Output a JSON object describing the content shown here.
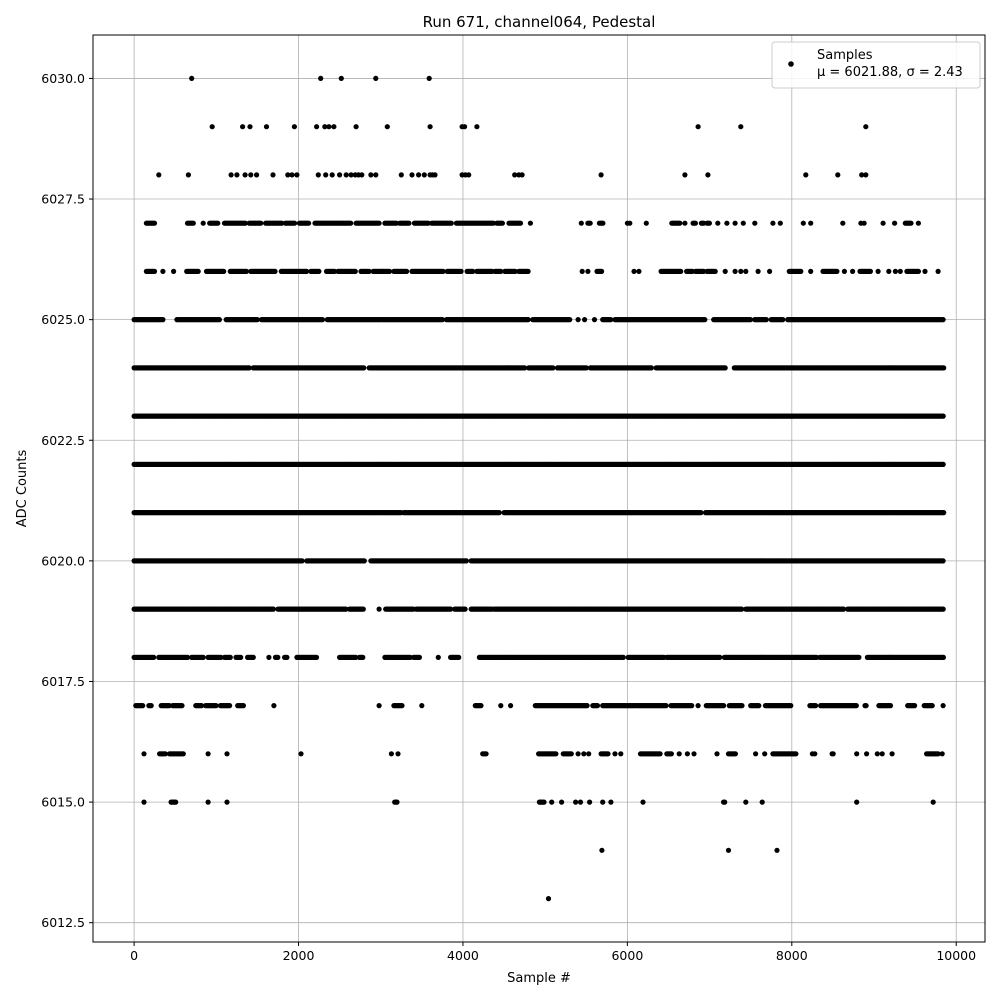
{
  "chart_data": {
    "type": "scatter",
    "title": "Run 671, channel064, Pedestal",
    "xlabel": "Sample #",
    "ylabel": "ADC Counts",
    "xlim": [
      -500,
      10350
    ],
    "ylim": [
      6012.1,
      6030.9
    ],
    "x_ticks": [
      "0",
      "2000",
      "4000",
      "6000",
      "8000",
      "10000"
    ],
    "y_ticks": [
      "6012.5",
      "6015.0",
      "6017.5",
      "6020.0",
      "6022.5",
      "6025.0",
      "6027.5",
      "6030.0"
    ],
    "x_tick_values": [
      0,
      2000,
      4000,
      6000,
      8000,
      10000
    ],
    "y_tick_values": [
      6012.5,
      6015.0,
      6017.5,
      6020.0,
      6022.5,
      6025.0,
      6027.5,
      6030.0
    ],
    "grid": true,
    "legend": {
      "placement": "top-right",
      "entries": [
        {
          "label": "Samples",
          "stat": "μ = 6021.88, σ = 2.43",
          "color": "#000000",
          "marker": "circle"
        }
      ]
    },
    "series": [
      {
        "name": "Samples",
        "color": "#000000",
        "mean": 6021.88,
        "sigma": 2.43,
        "n_samples": 9850,
        "levels": [
          {
            "y": 6030,
            "x": [
              700,
              2270,
              2520,
              2940,
              3590
            ]
          },
          {
            "y": 6029,
            "x": [
              950,
              1320,
              1410,
              1610,
              1950,
              2220,
              2320,
              2370,
              2430,
              2700,
              3080,
              3600,
              3990,
              4020,
              4170,
              6860,
              7380,
              8900
            ]
          },
          {
            "y": 6028,
            "x": [
              300,
              660,
              1180,
              1250,
              1350,
              1420,
              1490,
              1690,
              1870,
              1920,
              1980,
              2240,
              2330,
              2410,
              2500,
              2580,
              2640,
              2690,
              2730,
              2770,
              2880,
              2940,
              3250,
              3380,
              3460,
              3530,
              3600,
              3630,
              3660,
              3990,
              4030,
              4070,
              4630,
              4680,
              4720,
              5680,
              6700,
              6980,
              8170,
              8560,
              8850,
              8900
            ]
          },
          {
            "y": 6027,
            "x": [
              [
                150,
                250
              ],
              [
                650,
                720
              ],
              840,
              [
                920,
                1030
              ],
              [
                1100,
                1360
              ],
              [
                1400,
                1550
              ],
              [
                1600,
                1800
              ],
              [
                1840,
                1960
              ],
              [
                2010,
                2130
              ],
              [
                2200,
                2640
              ],
              [
                2700,
                2980
              ],
              [
                3050,
                3190
              ],
              [
                3230,
                3350
              ],
              [
                3410,
                3580
              ],
              [
                3620,
                3870
              ],
              [
                3920,
                4380
              ],
              [
                4410,
                4480
              ],
              [
                4560,
                4700
              ],
              4820,
              5440,
              [
                5520,
                5560
              ],
              [
                5660,
                5710
              ],
              6000,
              6030,
              6230,
              [
                6540,
                6650
              ],
              6700,
              [
                6800,
                6840
              ],
              [
                6900,
                6940
              ],
              [
                6970,
                7010
              ],
              7100,
              7210,
              7310,
              7410,
              7550,
              7770,
              7860,
              8140,
              8230,
              8620,
              8840,
              8880,
              9110,
              9250,
              [
                9380,
                9450
              ],
              9540
            ]
          },
          {
            "y": 6026,
            "x": [
              [
                150,
                250
              ],
              350,
              480,
              [
                640,
                780
              ],
              [
                880,
                1100
              ],
              [
                1170,
                1370
              ],
              [
                1420,
                1720
              ],
              [
                1790,
                2100
              ],
              [
                2150,
                2260
              ],
              [
                2340,
                2450
              ],
              [
                2480,
                2700
              ],
              [
                2760,
                2860
              ],
              [
                2910,
                3110
              ],
              [
                3160,
                3320
              ],
              [
                3380,
                3760
              ],
              [
                3810,
                3990
              ],
              [
                4050,
                4130
              ],
              [
                4170,
                4360
              ],
              [
                4390,
                4470
              ],
              [
                4510,
                4640
              ],
              [
                4680,
                4800
              ],
              5450,
              5520,
              [
                5630,
                5690
              ],
              6080,
              6140,
              [
                6410,
                6650
              ],
              [
                6720,
                6790
              ],
              [
                6830,
                6940
              ],
              [
                6970,
                7070
              ],
              7190,
              7310,
              7380,
              7440,
              7590,
              7730,
              [
                7970,
                8120
              ],
              8230,
              [
                8380,
                8550
              ],
              8640,
              8740,
              [
                8830,
                8960
              ],
              9050,
              9180,
              9260,
              9320,
              [
                9400,
                9550
              ],
              9620,
              9780
            ]
          },
          {
            "y": 6025,
            "x": [
              [
                0,
                350
              ],
              [
                520,
                1050
              ],
              [
                1120,
                1500
              ],
              [
                1550,
                2300
              ],
              [
                2350,
                3750
              ],
              [
                3800,
                4800
              ],
              [
                4850,
                5300
              ],
              5400,
              5480,
              5600,
              [
                5700,
                5800
              ],
              [
                5850,
                6950
              ],
              [
                7050,
                7500
              ],
              [
                7550,
                7700
              ],
              [
                7750,
                7900
              ],
              [
                7950,
                9850
              ]
            ]
          },
          {
            "y": 6024,
            "x": [
              [
                0,
                1400
              ],
              [
                1450,
                2800
              ],
              [
                2860,
                4750
              ],
              [
                4800,
                5100
              ],
              [
                5150,
                5500
              ],
              [
                5550,
                6300
              ],
              [
                6350,
                7200
              ],
              [
                7300,
                9850
              ]
            ]
          },
          {
            "y": 6023,
            "x": [
              [
                0,
                9850
              ]
            ]
          },
          {
            "y": 6022,
            "x": [
              [
                0,
                9850
              ]
            ]
          },
          {
            "y": 6021,
            "x": [
              [
                0,
                3250
              ],
              [
                3280,
                4450
              ],
              [
                4500,
                6900
              ],
              [
                6950,
                9850
              ]
            ]
          },
          {
            "y": 6020,
            "x": [
              [
                0,
                2050
              ],
              [
                2100,
                2800
              ],
              [
                2880,
                4050
              ],
              [
                4100,
                9850
              ]
            ]
          },
          {
            "y": 6019,
            "x": [
              [
                0,
                1700
              ],
              [
                1750,
                2580
              ],
              [
                2620,
                2800
              ],
              2980,
              [
                3060,
                3400
              ],
              [
                3430,
                3860
              ],
              [
                3900,
                4030
              ],
              [
                4100,
                4360
              ],
              [
                4380,
                7400
              ],
              [
                7440,
                8630
              ],
              [
                8680,
                9850
              ]
            ]
          },
          {
            "y": 6018,
            "x": [
              [
                0,
                250
              ],
              [
                300,
                650
              ],
              [
                700,
                850
              ],
              [
                900,
                1060
              ],
              [
                1100,
                1180
              ],
              [
                1240,
                1300
              ],
              [
                1380,
                1450
              ],
              1640,
              [
                1720,
                1760
              ],
              [
                1830,
                1870
              ],
              [
                1980,
                2230
              ],
              [
                2500,
                2700
              ],
              [
                2740,
                2790
              ],
              [
                3050,
                3360
              ],
              [
                3400,
                3470
              ],
              3700,
              [
                3850,
                3950
              ],
              [
                4200,
                5960
              ],
              [
                6010,
                6450
              ],
              [
                6480,
                7130
              ],
              [
                7180,
                8300
              ],
              [
                8340,
                8820
              ],
              [
                8920,
                9850
              ]
            ]
          },
          {
            "y": 6017,
            "x": [
              [
                20,
                110
              ],
              [
                180,
                210
              ],
              [
                330,
                440
              ],
              [
                470,
                590
              ],
              [
                750,
                820
              ],
              [
                870,
                1000
              ],
              [
                1050,
                1170
              ],
              [
                1260,
                1330
              ],
              1700,
              2980,
              [
                3160,
                3270
              ],
              3500,
              [
                4150,
                4230
              ],
              4460,
              4580,
              [
                4880,
                5520
              ],
              [
                5580,
                5640
              ],
              [
                5700,
                6470
              ],
              [
                6530,
                6790
              ],
              6860,
              [
                6960,
                7170
              ],
              [
                7240,
                7400
              ],
              [
                7500,
                7600
              ],
              [
                7680,
                7990
              ],
              [
                8220,
                8300
              ],
              [
                8350,
                8790
              ],
              [
                8890,
                8910
              ],
              [
                9060,
                9210
              ],
              [
                9410,
                9500
              ],
              [
                9610,
                9720
              ],
              9840
            ]
          },
          {
            "y": 6016,
            "x": [
              120,
              [
                310,
                380
              ],
              [
                430,
                600
              ],
              900,
              1130,
              2030,
              3130,
              3210,
              [
                4240,
                4290
              ],
              [
                4920,
                5140
              ],
              [
                5220,
                5330
              ],
              5400,
              5470,
              5530,
              [
                5680,
                5770
              ],
              5850,
              5920,
              [
                6160,
                6410
              ],
              [
                6480,
                6540
              ],
              6630,
              6730,
              6810,
              7090,
              [
                7230,
                7320
              ],
              7560,
              7670,
              [
                7770,
                8050
              ],
              8250,
              8280,
              [
                8490,
                8510
              ],
              8790,
              8910,
              9040,
              9100,
              9220,
              [
                9640,
                9780
              ],
              9830
            ]
          },
          {
            "y": 6015,
            "x": [
              120,
              [
                450,
                510
              ],
              900,
              1130,
              [
                3170,
                3200
              ],
              [
                4930,
                4990
              ],
              5080,
              5200,
              5370,
              5430,
              5540,
              5700,
              5800,
              6190,
              [
                7170,
                7190
              ],
              7440,
              7640,
              8790,
              9720
            ]
          },
          {
            "y": 6014,
            "x": [
              5690,
              7230,
              7820
            ]
          },
          {
            "y": 6013,
            "x": [
              5040
            ]
          }
        ]
      }
    ]
  }
}
